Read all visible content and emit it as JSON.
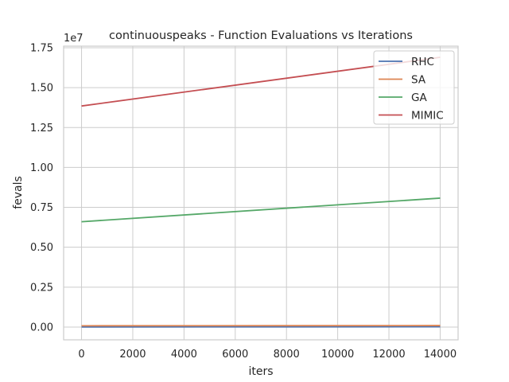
{
  "chart_data": {
    "type": "line",
    "title": "continuouspeaks - Function Evaluations vs Iterations",
    "xlabel": "iters",
    "ylabel": "fevals",
    "y_offset_label": "1e7",
    "xlim": [
      -700,
      14700
    ],
    "ylim": [
      -800000,
      17600000
    ],
    "x_ticks": [
      0,
      2000,
      4000,
      6000,
      8000,
      10000,
      12000,
      14000
    ],
    "x_tick_labels": [
      "0",
      "2000",
      "4000",
      "6000",
      "8000",
      "10000",
      "12000",
      "14000"
    ],
    "y_ticks": [
      0,
      2500000,
      5000000,
      7500000,
      10000000,
      12500000,
      15000000,
      17500000
    ],
    "y_tick_labels": [
      "0.00",
      "0.25",
      "0.50",
      "0.75",
      "1.00",
      "1.25",
      "1.50",
      "1.75"
    ],
    "grid": true,
    "legend_position": "top-right",
    "series": [
      {
        "name": "RHC",
        "color": "#4c72b0",
        "x": [
          0,
          14000
        ],
        "y": [
          5000,
          19000
        ]
      },
      {
        "name": "SA",
        "color": "#dd8452",
        "x": [
          0,
          14000
        ],
        "y": [
          80000,
          94000
        ]
      },
      {
        "name": "GA",
        "color": "#55a868",
        "x": [
          0,
          14000
        ],
        "y": [
          6600000,
          8080000
        ]
      },
      {
        "name": "MIMIC",
        "color": "#c44e52",
        "x": [
          0,
          14000
        ],
        "y": [
          13850000,
          16900000
        ]
      }
    ]
  }
}
